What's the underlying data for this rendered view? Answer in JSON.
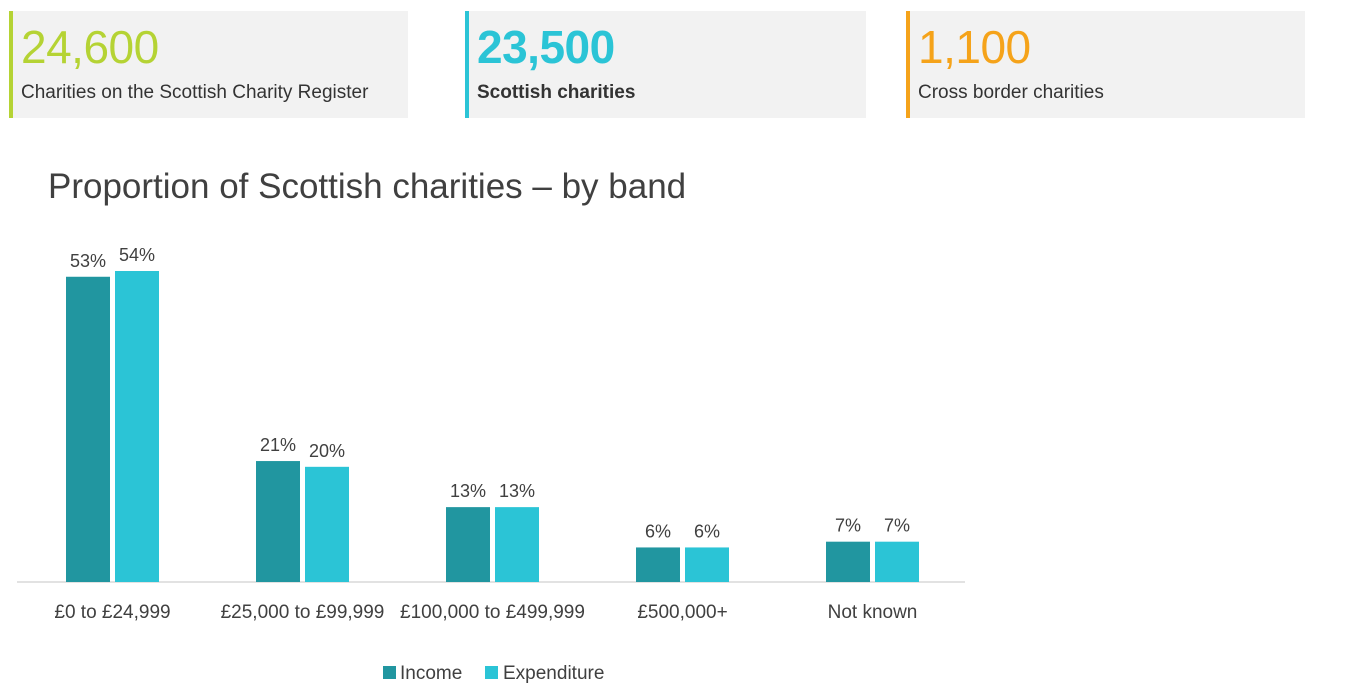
{
  "stats": [
    {
      "value": "24,600",
      "label": "Charities on the Scottish Charity Register",
      "color": "#b5d334"
    },
    {
      "value": "23,500",
      "label": "Scottish charities",
      "color": "#2bc4d6"
    },
    {
      "value": "1,100",
      "label": "Cross border charities",
      "color": "#f5a31a"
    }
  ],
  "chart_data": {
    "type": "bar",
    "title": "Proportion of Scottish charities – by band",
    "categories": [
      "£0 to £24,999",
      "£25,000 to £99,999",
      "£100,000 to £499,999",
      "£500,000+",
      "Not known"
    ],
    "series": [
      {
        "name": "Income",
        "values": [
          53,
          21,
          13,
          6,
          7
        ],
        "labels": [
          "53%",
          "21%",
          "13%",
          "6%",
          "7%"
        ],
        "color": "#2196a0"
      },
      {
        "name": "Expenditure",
        "values": [
          54,
          20,
          13,
          6,
          7
        ],
        "labels": [
          "54%",
          "20%",
          "13%",
          "6%",
          "7%"
        ],
        "color": "#2bc4d6"
      }
    ],
    "ylim": [
      0,
      54
    ],
    "grid": false,
    "legend": "bottom"
  }
}
